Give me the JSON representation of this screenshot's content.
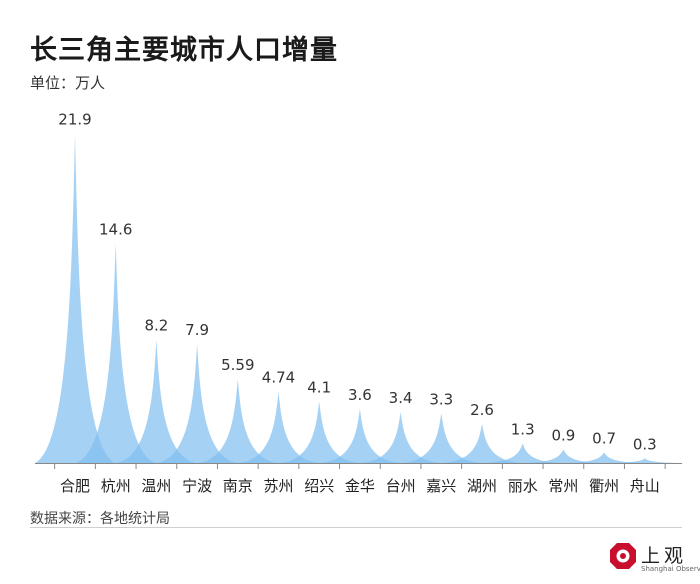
{
  "header": {
    "title": "长三角主要城市人口增量",
    "unit": "单位：万人"
  },
  "footer": {
    "source": "数据来源：各地统计局"
  },
  "logo": {
    "name": "上观",
    "subtitle": "Shanghai Observer",
    "color": "#c8102e"
  },
  "chart_data": {
    "type": "area",
    "categories": [
      "合肥",
      "杭州",
      "温州",
      "宁波",
      "南京",
      "苏州",
      "绍兴",
      "金华",
      "台州",
      "嘉兴",
      "湖州",
      "丽水",
      "常州",
      "衢州",
      "舟山"
    ],
    "values": [
      21.9,
      14.6,
      8.2,
      7.9,
      5.59,
      4.74,
      4.1,
      3.6,
      3.4,
      3.3,
      2.6,
      1.3,
      0.9,
      0.7,
      0.3
    ],
    "value_labels": [
      "21.9",
      "14.6",
      "8.2",
      "7.9",
      "5.59",
      "4.74",
      "4.1",
      "3.6",
      "3.4",
      "3.3",
      "2.6",
      "1.3",
      "0.9",
      "0.7",
      "0.3"
    ],
    "ylim": [
      0,
      22
    ],
    "grid": false,
    "color": "#82bff0"
  }
}
